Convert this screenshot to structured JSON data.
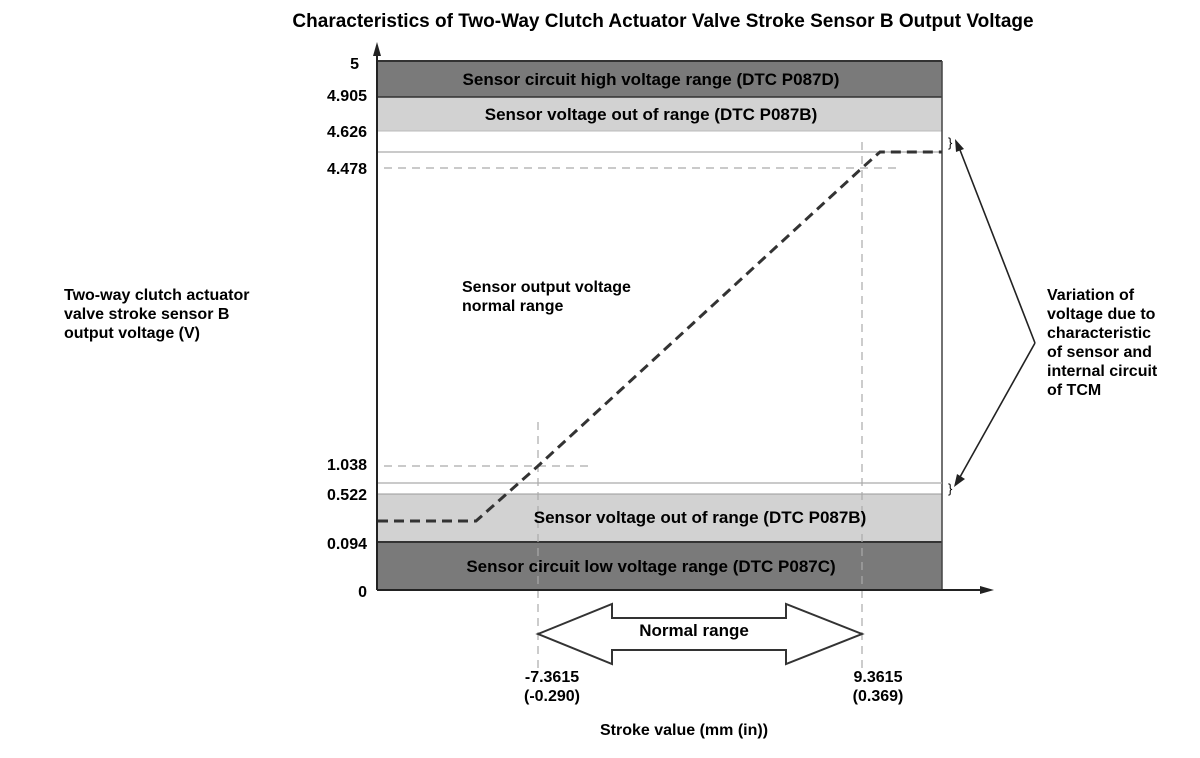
{
  "title": "Characteristics of Two-Way Clutch Actuator Valve Stroke Sensor B Output Voltage",
  "y_axis": {
    "label_lines": [
      "Two-way clutch actuator",
      "valve stroke sensor B",
      "output voltage (V)"
    ],
    "ticks": [
      "5",
      "4.905",
      "4.626",
      "4.478",
      "1.038",
      "0.522",
      "0.094",
      "0"
    ]
  },
  "x_axis": {
    "label": "Stroke value (mm (in))",
    "tick_left": {
      "mm": "-7.3615",
      "in": "(-0.290)"
    },
    "tick_right": {
      "mm": "9.3615",
      "in": "(0.369)"
    }
  },
  "bands": {
    "high_circuit": "Sensor circuit high voltage range (DTC P087D)",
    "out_of_range_top": "Sensor voltage out of range (DTC P087B)",
    "out_of_range_bottom": "Sensor voltage out of range (DTC P087B)",
    "low_circuit": "Sensor circuit low voltage range (DTC P087C)"
  },
  "normal_range_text": [
    "Sensor output voltage",
    "normal range"
  ],
  "normal_range_arrow": "Normal range",
  "variation_note": [
    "Variation of",
    "voltage due to",
    "characteristic",
    "of sensor and",
    "internal circuit",
    "of TCM"
  ],
  "colors": {
    "dark_band": "#7a7a7a",
    "light_band": "#d2d2d2",
    "line": "#333333"
  }
}
